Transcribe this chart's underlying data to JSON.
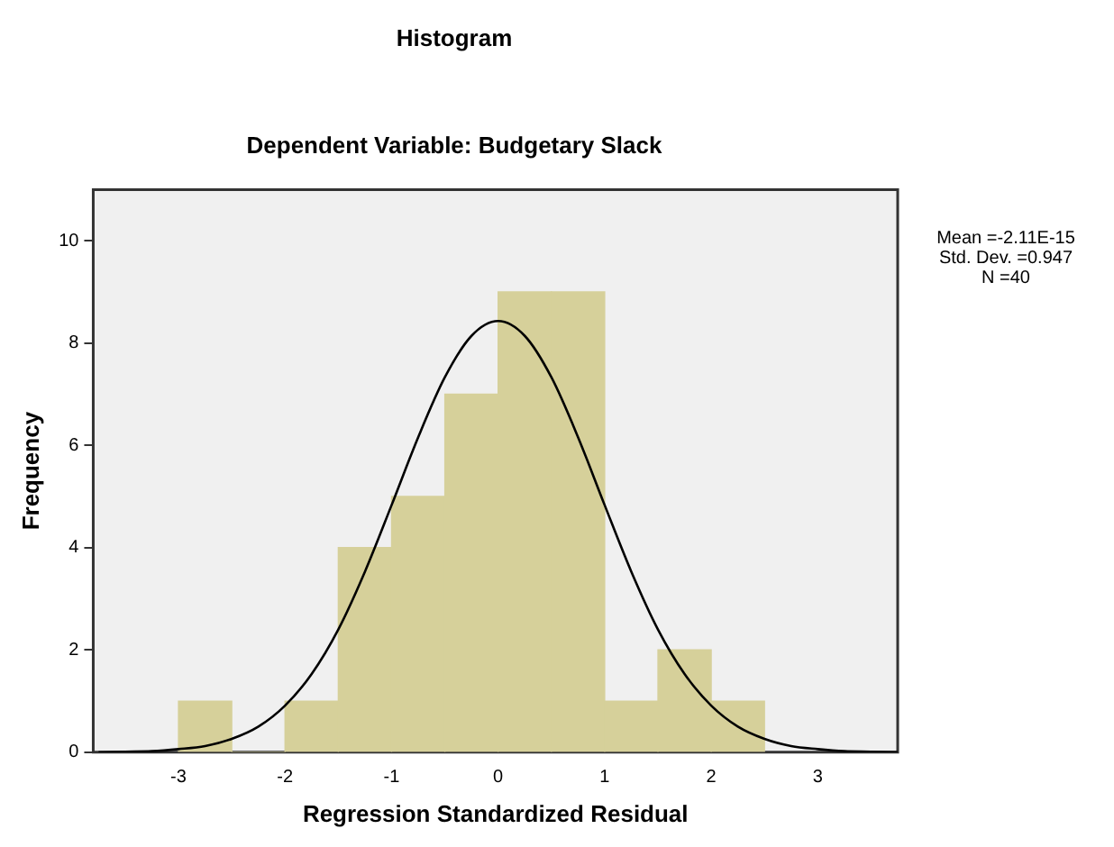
{
  "chart_data": {
    "type": "histogram",
    "title": "Histogram",
    "subtitle": "Dependent Variable: Budgetary Slack",
    "xlabel": "Regression Standardized Residual",
    "ylabel": "Frequency",
    "bins": [
      -3,
      -2.5,
      -2,
      -1.5,
      -1,
      -0.5,
      0,
      0.5,
      1,
      1.5,
      2,
      2.5
    ],
    "values": [
      1,
      0,
      1,
      4,
      5,
      7,
      9,
      9,
      1,
      2,
      1
    ],
    "color": "#d6d09a",
    "series": [
      {
        "type": "line",
        "color": "#000000",
        "x": [
          -3.75,
          -3.5,
          -3.25,
          -3,
          -2.75,
          -2.5,
          -2.25,
          -2,
          -1.75,
          -1.5,
          -1.25,
          -1,
          -0.75,
          -0.5,
          -0.25,
          0,
          0.25,
          0.5,
          0.75,
          1,
          1.25,
          1.5,
          1.75,
          2,
          2.25,
          2.5,
          2.75,
          3,
          3.25,
          3.5,
          3.75
        ],
        "values": [
          0,
          0.01,
          0.02,
          0.06,
          0.12,
          0.26,
          0.5,
          0.91,
          1.53,
          2.4,
          3.53,
          4.83,
          6.16,
          7.33,
          8.14,
          8.43,
          8.14,
          7.33,
          6.16,
          4.83,
          3.53,
          2.4,
          1.53,
          0.91,
          0.5,
          0.26,
          0.12,
          0.06,
          0.02,
          0.01,
          0
        ]
      }
    ],
    "xlim": [
      -3.8,
      3.75
    ],
    "xticks": [
      -3,
      -2,
      -1,
      0,
      1,
      2,
      3
    ],
    "ylim": [
      0,
      11
    ],
    "yticks": [
      0,
      2,
      4,
      6,
      8,
      10
    ],
    "grid": false,
    "legend": false,
    "marker": "none",
    "line_style": "solid",
    "annotations": [
      "Mean =-2.11E-15",
      "Std. Dev. =0.947",
      "N =40"
    ]
  }
}
